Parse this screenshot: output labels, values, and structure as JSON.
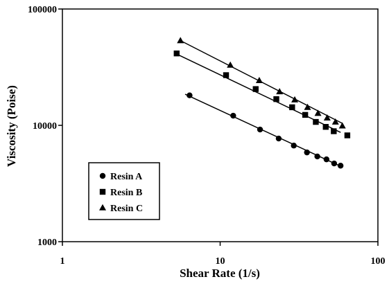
{
  "chart_data": {
    "type": "scatter",
    "title": "",
    "xlabel": "Shear Rate (1/s)",
    "ylabel": "Viscosity (Poise)",
    "xscale": "log",
    "yscale": "log",
    "xlim": [
      1,
      100
    ],
    "ylim": [
      1000,
      100000
    ],
    "x_ticks": [
      "1",
      "10",
      "100"
    ],
    "y_ticks": [
      "1000",
      "10000",
      "100000"
    ],
    "grid": false,
    "legend_position": "lower-left",
    "series": [
      {
        "name": "Resin A",
        "marker": "circle",
        "x": [
          6.4,
          12.1,
          17.9,
          23.5,
          29.3,
          35.5,
          41.3,
          47.2,
          52.8,
          58.0
        ],
        "y": [
          18100,
          12100,
          9200,
          7700,
          6700,
          5850,
          5400,
          5100,
          4700,
          4500
        ],
        "fit": {
          "x": [
            6.0,
            58.0
          ],
          "y": [
            18500,
            4450
          ]
        }
      },
      {
        "name": "Resin B",
        "marker": "square",
        "x": [
          5.3,
          10.9,
          16.8,
          22.7,
          28.6,
          34.6,
          40.4,
          46.7,
          52.5,
          64.0
        ],
        "y": [
          41500,
          27000,
          20500,
          16800,
          14300,
          12300,
          10700,
          9700,
          8900,
          8200
        ],
        "fit": {
          "x": [
            5.3,
            58.0
          ],
          "y": [
            41000,
            8700
          ]
        }
      },
      {
        "name": "Resin C",
        "marker": "triangle",
        "x": [
          5.6,
          11.6,
          17.7,
          23.8,
          29.7,
          35.8,
          41.7,
          47.7,
          53.8,
          59.5
        ],
        "y": [
          53500,
          33000,
          24300,
          19500,
          16600,
          14300,
          12700,
          11600,
          10700,
          9900
        ],
        "fit": {
          "x": [
            5.6,
            59.5
          ],
          "y": [
            53500,
            10400
          ]
        }
      }
    ]
  }
}
